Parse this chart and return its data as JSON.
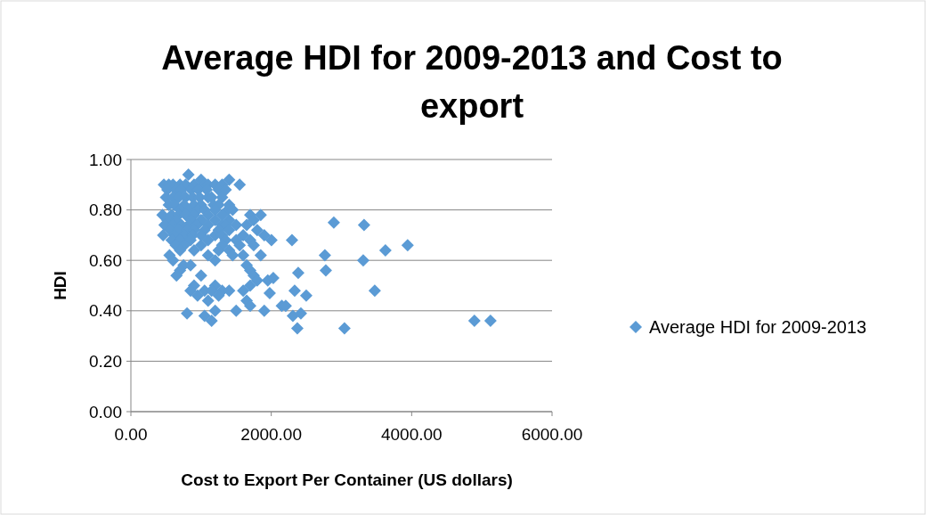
{
  "chart_data": {
    "type": "scatter",
    "title": "Average HDI for 2009-2013 and Cost to export",
    "xlabel": "Cost to Export Per Container (US dollars)",
    "ylabel": "HDI",
    "xlim": [
      0,
      6000
    ],
    "ylim": [
      0,
      1
    ],
    "xticks": [
      {
        "value": 0,
        "label": "0.00"
      },
      {
        "value": 2000,
        "label": "2000.00"
      },
      {
        "value": 4000,
        "label": "4000.00"
      },
      {
        "value": 6000,
        "label": "6000.00"
      }
    ],
    "yticks": [
      {
        "value": 0,
        "label": "0.00"
      },
      {
        "value": 0.2,
        "label": "0.20"
      },
      {
        "value": 0.4,
        "label": "0.40"
      },
      {
        "value": 0.6,
        "label": "0.60"
      },
      {
        "value": 0.8,
        "label": "0.80"
      },
      {
        "value": 1,
        "label": "1.00"
      }
    ],
    "grid": "y",
    "legend": "right",
    "marker": "diamond",
    "series": [
      {
        "name": "Average HDI for 2009-2013",
        "color": "#5b9bd5",
        "x": [
          470,
          540,
          600,
          700,
          780,
          820,
          900,
          1000,
          1050,
          1100,
          1200,
          1300,
          1400,
          1550,
          520,
          640,
          720,
          860,
          960,
          1080,
          1250,
          1350,
          500,
          600,
          680,
          780,
          880,
          980,
          1100,
          1150,
          1300,
          540,
          620,
          760,
          900,
          1000,
          1180,
          1250,
          1400,
          700,
          820,
          950,
          1050,
          1200,
          1380,
          1450,
          450,
          580,
          680,
          780,
          900,
          1100,
          1300,
          1700,
          1850,
          520,
          640,
          860,
          1000,
          1200,
          1400,
          1750,
          480,
          600,
          720,
          820,
          940,
          1100,
          1300,
          1350,
          1500,
          1650,
          560,
          680,
          800,
          900,
          1050,
          1250,
          1400,
          1800,
          460,
          620,
          760,
          880,
          1000,
          1200,
          1300,
          1600,
          1900,
          580,
          700,
          850,
          1100,
          1350,
          1500,
          1700,
          640,
          760,
          1000,
          1300,
          1550,
          1750,
          700,
          900,
          1250,
          1400,
          550,
          1100,
          1450,
          1600,
          1850,
          600,
          1200,
          750,
          850,
          1650,
          700,
          1700,
          650,
          1000,
          1750,
          1800,
          1950,
          900,
          1200,
          1700,
          850,
          1050,
          1150,
          1300,
          1400,
          1600,
          950,
          1250,
          1100,
          1650,
          1700,
          2150,
          1200,
          1500,
          1900,
          800,
          1050,
          1150,
          2891,
          3322,
          2003,
          2295,
          2764,
          3626,
          3943,
          3310,
          2777,
          2384,
          3474,
          2029,
          1978,
          2333,
          2498,
          2206,
          2308,
          2422,
          2371,
          3043,
          4894,
          5123
        ],
        "values": [
          0.9,
          0.9,
          0.9,
          0.9,
          0.9,
          0.94,
          0.9,
          0.92,
          0.9,
          0.9,
          0.9,
          0.9,
          0.92,
          0.9,
          0.88,
          0.88,
          0.88,
          0.88,
          0.88,
          0.88,
          0.88,
          0.88,
          0.85,
          0.85,
          0.85,
          0.85,
          0.85,
          0.85,
          0.85,
          0.85,
          0.85,
          0.82,
          0.82,
          0.82,
          0.82,
          0.82,
          0.82,
          0.82,
          0.82,
          0.8,
          0.8,
          0.8,
          0.8,
          0.8,
          0.8,
          0.8,
          0.78,
          0.78,
          0.78,
          0.78,
          0.78,
          0.78,
          0.78,
          0.78,
          0.78,
          0.76,
          0.76,
          0.76,
          0.76,
          0.76,
          0.76,
          0.76,
          0.74,
          0.74,
          0.74,
          0.74,
          0.74,
          0.74,
          0.74,
          0.74,
          0.74,
          0.74,
          0.72,
          0.72,
          0.72,
          0.72,
          0.72,
          0.72,
          0.72,
          0.72,
          0.7,
          0.7,
          0.7,
          0.7,
          0.7,
          0.7,
          0.7,
          0.7,
          0.7,
          0.68,
          0.68,
          0.68,
          0.68,
          0.68,
          0.68,
          0.68,
          0.66,
          0.66,
          0.66,
          0.66,
          0.66,
          0.66,
          0.64,
          0.64,
          0.64,
          0.64,
          0.62,
          0.62,
          0.62,
          0.62,
          0.62,
          0.6,
          0.6,
          0.58,
          0.58,
          0.58,
          0.56,
          0.56,
          0.54,
          0.54,
          0.54,
          0.52,
          0.52,
          0.5,
          0.5,
          0.5,
          0.48,
          0.48,
          0.48,
          0.48,
          0.48,
          0.48,
          0.46,
          0.46,
          0.44,
          0.44,
          0.42,
          0.42,
          0.4,
          0.4,
          0.4,
          0.39,
          0.38,
          0.36,
          0.75,
          0.74,
          0.68,
          0.68,
          0.62,
          0.64,
          0.66,
          0.6,
          0.56,
          0.55,
          0.48,
          0.53,
          0.47,
          0.48,
          0.46,
          0.42,
          0.38,
          0.39,
          0.33,
          0.33,
          0.36,
          0.36
        ]
      }
    ]
  }
}
